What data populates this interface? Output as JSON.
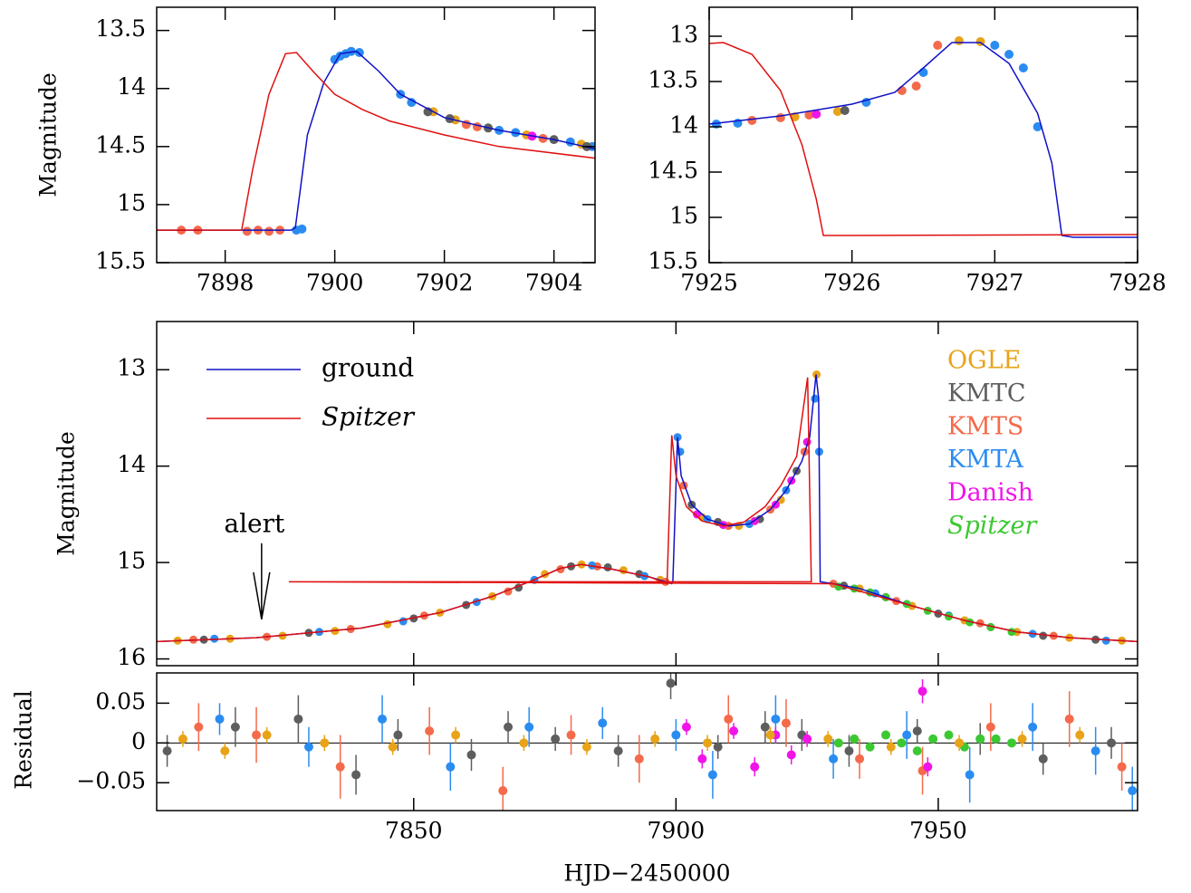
{
  "chart_data": [
    {
      "type": "lightcurve",
      "y_label": "Magnitude",
      "y_inverted": true,
      "xlim": [
        7896.75,
        7904.75
      ],
      "ylim": [
        13.3,
        15.5
      ],
      "xticks": [
        7898,
        7900,
        7902,
        7904
      ],
      "yticks": [
        13.5,
        14,
        14.5,
        15,
        15.5
      ],
      "show_xtick_labels": true,
      "series": [
        {
          "color": "#1010c8",
          "x": [
            7896.75,
            7899.2,
            7899.28,
            7899.5,
            7899.8,
            7900.1,
            7900.4,
            7900.8,
            7901.2,
            7902,
            7903,
            7904,
            7904.75
          ],
          "y": [
            15.22,
            15.22,
            15.2,
            14.4,
            13.95,
            13.7,
            13.68,
            13.85,
            14.05,
            14.25,
            14.36,
            14.44,
            14.52
          ]
        },
        {
          "color": "#e01010",
          "x": [
            7896.75,
            7898.3,
            7898.5,
            7898.8,
            7899.1,
            7899.3,
            7899.6,
            7900,
            7900.5,
            7901,
            7902,
            7903,
            7904.75
          ],
          "y": [
            15.22,
            15.22,
            14.7,
            14.05,
            13.7,
            13.69,
            13.85,
            14.05,
            14.18,
            14.28,
            14.4,
            14.5,
            14.6
          ]
        }
      ],
      "data": [
        {
          "color": "#f46a4a",
          "x": [
            7897.2,
            7897.5,
            7898.4,
            7898.6,
            7898.8,
            7899.0,
            7902.4,
            7902.6,
            7903.8
          ],
          "y": [
            15.22,
            15.22,
            15.23,
            15.22,
            15.23,
            15.22,
            14.31,
            14.33,
            14.43
          ]
        },
        {
          "color": "#2a8cf0",
          "x": [
            7899.3,
            7899.4,
            7900.0,
            7900.1,
            7900.2,
            7900.3,
            7900.45,
            7901.2,
            7901.4,
            7903.0,
            7903.3,
            7904.3,
            7904.7
          ],
          "y": [
            15.22,
            15.21,
            13.75,
            13.72,
            13.7,
            13.68,
            13.69,
            14.05,
            14.12,
            14.36,
            14.38,
            14.46,
            14.5
          ]
        },
        {
          "color": "#e8a318",
          "x": [
            7901.8,
            7902.2,
            7903.5,
            7904.5
          ],
          "y": [
            14.2,
            14.27,
            14.4,
            14.48
          ]
        },
        {
          "color": "#5e5e5e",
          "x": [
            7901.7,
            7902.1,
            7902.8,
            7904.0,
            7904.6
          ],
          "y": [
            14.2,
            14.26,
            14.34,
            14.44,
            14.5
          ]
        },
        {
          "color": "#f014e8",
          "x": [
            7903.6
          ],
          "y": [
            14.41
          ]
        }
      ]
    },
    {
      "type": "lightcurve",
      "y_inverted": true,
      "xlim": [
        7925,
        7928
      ],
      "ylim": [
        12.68,
        15.5
      ],
      "xticks": [
        7925,
        7926,
        7927,
        7928
      ],
      "yticks": [
        13,
        13.5,
        14,
        14.5,
        15,
        15.5
      ],
      "show_xtick_labels": true,
      "series": [
        {
          "color": "#1010c8",
          "x": [
            7925,
            7925.5,
            7926,
            7926.3,
            7926.5,
            7926.7,
            7926.9,
            7927.1,
            7927.3,
            7927.4,
            7927.47,
            7927.55,
            7928
          ],
          "y": [
            13.97,
            13.88,
            13.75,
            13.62,
            13.35,
            13.07,
            13.07,
            13.3,
            13.85,
            14.4,
            15.2,
            15.22,
            15.22
          ]
        },
        {
          "color": "#e01010",
          "x": [
            7925,
            7925.1,
            7925.3,
            7925.5,
            7925.65,
            7925.75,
            7925.8,
            7926,
            7928
          ],
          "y": [
            13.08,
            13.07,
            13.2,
            13.6,
            14.2,
            14.8,
            15.2,
            15.2,
            15.19
          ]
        }
      ],
      "data": [
        {
          "color": "#2a8cf0",
          "x": [
            7925.05,
            7925.2,
            7926.1,
            7926.5,
            7927.0,
            7927.1,
            7927.2,
            7927.3
          ],
          "y": [
            13.97,
            13.96,
            13.73,
            13.4,
            13.1,
            13.2,
            13.35,
            14.0
          ]
        },
        {
          "color": "#f46a4a",
          "x": [
            7925.3,
            7925.5,
            7925.7,
            7926.35,
            7926.45,
            7926.6
          ],
          "y": [
            13.93,
            13.9,
            13.87,
            13.6,
            13.55,
            13.1
          ]
        },
        {
          "color": "#e8a318",
          "x": [
            7925.6,
            7925.9,
            7926.75,
            7926.9
          ],
          "y": [
            13.89,
            13.83,
            13.05,
            13.06
          ]
        },
        {
          "color": "#5e5e5e",
          "x": [
            7925.95
          ],
          "y": [
            13.82
          ]
        },
        {
          "color": "#f014e8",
          "x": [
            7925.75
          ],
          "y": [
            13.86
          ]
        }
      ]
    },
    {
      "type": "lightcurve",
      "y_label": "Magnitude",
      "y_inverted": true,
      "xlim": [
        7801,
        7988
      ],
      "ylim": [
        12.5,
        16.07
      ],
      "xticks": [
        7850,
        7900,
        7950
      ],
      "yticks": [
        13,
        14,
        15,
        16
      ],
      "show_xtick_labels": false,
      "series": [
        {
          "name": "ground",
          "color": "#1010c8",
          "x": [
            7801,
            7820,
            7840,
            7855,
            7865,
            7872,
            7878,
            7882,
            7888,
            7895,
            7899.2,
            7899.4,
            7900.3,
            7901,
            7903,
            7906,
            7910,
            7914,
            7918,
            7921,
            7924,
            7925.5,
            7926.7,
            7927.2,
            7927.5,
            7930,
            7935,
            7945,
            7955,
            7965,
            7975,
            7988
          ],
          "y": [
            15.82,
            15.78,
            15.68,
            15.52,
            15.35,
            15.2,
            15.06,
            15.02,
            15.07,
            15.15,
            15.22,
            15.2,
            13.7,
            14.1,
            14.4,
            14.55,
            14.62,
            14.6,
            14.45,
            14.25,
            13.95,
            13.7,
            13.05,
            13.3,
            15.2,
            15.22,
            15.27,
            15.45,
            15.6,
            15.72,
            15.78,
            15.82
          ]
        },
        {
          "name": "Spitzer",
          "font_style": "italic",
          "color": "#e01010",
          "x": [
            7801,
            7820,
            7840,
            7855,
            7865,
            7872,
            7878,
            7882,
            7888,
            7895,
            7898.3,
            7899.2,
            7900,
            7902,
            7905,
            7909,
            7913,
            7917,
            7920,
            7923,
            7925.1,
            7925.8,
            7826.2,
            7930,
            7945,
            7955,
            7965,
            7975,
            7988
          ],
          "y": [
            15.82,
            15.78,
            15.68,
            15.52,
            15.35,
            15.2,
            15.06,
            15.02,
            15.07,
            15.15,
            15.22,
            13.68,
            14.1,
            14.42,
            14.57,
            14.62,
            14.58,
            14.42,
            14.2,
            13.9,
            13.08,
            15.2,
            15.2,
            15.22,
            15.45,
            15.6,
            15.72,
            15.78,
            15.82
          ]
        }
      ],
      "data": [
        {
          "name": "OGLE",
          "color": "#e8a318",
          "x": [
            7805,
            7815,
            7825,
            7835,
            7845,
            7855,
            7865,
            7875,
            7882,
            7890,
            7897,
            7905,
            7912,
            7920,
            7926.8,
            7935,
            7945,
            7955,
            7965,
            7975,
            7985
          ],
          "y": [
            15.81,
            15.79,
            15.76,
            15.71,
            15.64,
            15.52,
            15.35,
            15.12,
            15.02,
            15.08,
            15.18,
            14.53,
            14.62,
            14.35,
            13.05,
            15.27,
            15.45,
            15.6,
            15.72,
            15.78,
            15.81
          ]
        },
        {
          "name": "KMTC",
          "color": "#5e5e5e",
          "x": [
            7810,
            7830,
            7850,
            7860,
            7870,
            7880,
            7887,
            7893,
            7903,
            7908,
            7916,
            7923,
            7932,
            7940,
            7950,
            7960,
            7970,
            7980
          ],
          "y": [
            15.8,
            15.73,
            15.58,
            15.44,
            15.26,
            15.04,
            15.05,
            15.12,
            14.4,
            14.58,
            14.55,
            14.05,
            15.24,
            15.36,
            15.53,
            15.67,
            15.76,
            15.8
          ]
        },
        {
          "name": "KMTS",
          "color": "#f46a4a",
          "x": [
            7808,
            7822,
            7838,
            7852,
            7868,
            7878,
            7885,
            7898,
            7901.5,
            7910,
            7918,
            7924.5,
            7930,
            7942,
            7958,
            7972
          ],
          "y": [
            15.8,
            15.77,
            15.69,
            15.55,
            15.3,
            15.07,
            15.04,
            15.2,
            14.2,
            14.62,
            14.45,
            13.85,
            15.22,
            15.4,
            15.63,
            15.76
          ]
        },
        {
          "name": "KMTA",
          "color": "#2a8cf0",
          "x": [
            7812,
            7832,
            7848,
            7862,
            7873,
            7884,
            7894,
            7900.3,
            7900.8,
            7906,
            7914,
            7921,
            7926.5,
            7927.3,
            7938,
            7952,
            7968,
            7982
          ],
          "y": [
            15.79,
            15.72,
            15.61,
            15.41,
            15.18,
            15.03,
            15.14,
            13.7,
            13.85,
            14.55,
            14.6,
            14.25,
            13.3,
            13.85,
            15.32,
            15.55,
            15.74,
            15.81
          ]
        },
        {
          "name": "Danish",
          "color": "#f014e8",
          "x": [
            7904,
            7909,
            7915,
            7919,
            7922,
            7925
          ],
          "y": [
            14.5,
            14.61,
            14.57,
            14.4,
            14.15,
            13.75
          ]
        },
        {
          "name": "Spitzer",
          "font_style": "italic",
          "color": "#3cc832",
          "x": [
            7931,
            7934,
            7937,
            7940,
            7944,
            7948,
            7952,
            7956,
            7960,
            7964
          ],
          "y": [
            15.25,
            15.27,
            15.31,
            15.36,
            15.43,
            15.5,
            15.56,
            15.62,
            15.67,
            15.72
          ]
        }
      ],
      "annotation": {
        "text": "alert",
        "x": 7821,
        "y": 15.59
      }
    },
    {
      "type": "residual",
      "y_label": "Residual",
      "x_label": "HJD−2450000",
      "xlim": [
        7801,
        7988
      ],
      "ylim": [
        -0.085,
        0.088
      ],
      "xticks": [
        7850,
        7900,
        7950
      ],
      "yticks": [
        0.05,
        0,
        {
          "value": -0.05,
          "label": "−0.05"
        }
      ],
      "show_xtick_labels": true,
      "zero_line": true,
      "data": [
        {
          "color": "#5e5e5e",
          "x": [
            7803,
            7816,
            7828,
            7839,
            7847,
            7861,
            7868,
            7877,
            7889,
            7899,
            7908,
            7917,
            7924,
            7933,
            7946,
            7958,
            7970,
            7983
          ],
          "y": [
            -0.01,
            0.02,
            0.03,
            -0.04,
            0.01,
            -0.015,
            0.02,
            0.005,
            -0.01,
            0.075,
            -0.005,
            0.02,
            0.01,
            -0.01,
            0.015,
            0.005,
            -0.02,
            0.0
          ],
          "err": [
            0.02,
            0.025,
            0.03,
            0.025,
            0.02,
            0.02,
            0.02,
            0.015,
            0.02,
            0.02,
            0.015,
            0.02,
            0.02,
            0.02,
            0.015,
            0.02,
            0.02,
            0.02
          ]
        },
        {
          "color": "#f46a4a",
          "x": [
            7809,
            7820,
            7836,
            7853,
            7867,
            7880,
            7893,
            7910,
            7921,
            7935,
            7947,
            7960,
            7975,
            7985
          ],
          "y": [
            0.02,
            0.01,
            -0.03,
            0.015,
            -0.06,
            0.01,
            -0.02,
            0.03,
            0.025,
            -0.02,
            -0.035,
            0.02,
            0.03,
            -0.03
          ],
          "err": [
            0.03,
            0.035,
            0.04,
            0.03,
            0.03,
            0.025,
            0.03,
            0.03,
            0.03,
            0.025,
            0.03,
            0.03,
            0.035,
            0.03
          ]
        },
        {
          "color": "#2a8cf0",
          "x": [
            7813,
            7830,
            7844,
            7857,
            7872,
            7886,
            7900,
            7907,
            7919,
            7930,
            7944,
            7956,
            7968,
            7980,
            7987
          ],
          "y": [
            0.03,
            -0.005,
            0.03,
            -0.03,
            0.02,
            0.025,
            0.01,
            -0.04,
            0.03,
            -0.02,
            0.01,
            -0.04,
            0.02,
            -0.01,
            -0.06
          ],
          "err": [
            0.02,
            0.025,
            0.03,
            0.03,
            0.025,
            0.02,
            0.02,
            0.03,
            0.03,
            0.025,
            0.03,
            0.035,
            0.03,
            0.03,
            0.03
          ]
        },
        {
          "color": "#f014e8",
          "x": [
            7902,
            7905,
            7911,
            7915,
            7919,
            7922,
            7925,
            7947,
            7948
          ],
          "y": [
            0.02,
            -0.02,
            0.015,
            -0.03,
            0.01,
            -0.015,
            0.005,
            0.065,
            -0.03
          ],
          "err": [
            0.01,
            0.012,
            0.01,
            0.012,
            0.01,
            0.012,
            0.01,
            0.015,
            0.012
          ]
        },
        {
          "color": "#3cc832",
          "x": [
            7931,
            7934,
            7937,
            7940,
            7943,
            7946,
            7949,
            7952,
            7955,
            7958,
            7961,
            7964
          ],
          "y": [
            0,
            0.005,
            -0.005,
            0.01,
            0,
            -0.01,
            0.005,
            0.01,
            -0.005,
            0.005,
            0.005,
            0
          ],
          "err": [
            0.005,
            0.005,
            0.005,
            0.005,
            0.005,
            0.005,
            0.005,
            0.005,
            0.005,
            0.005,
            0.005,
            0.005
          ]
        },
        {
          "color": "#e8a318",
          "x": [
            7806,
            7814,
            7822,
            7833,
            7846,
            7858,
            7871,
            7883,
            7896,
            7906,
            7918,
            7929,
            7941,
            7954,
            7966,
            7977
          ],
          "y": [
            0.005,
            -0.01,
            0.01,
            0,
            -0.005,
            0.01,
            0,
            -0.005,
            0.005,
            0,
            0.01,
            0.005,
            -0.005,
            0,
            0.005,
            0.01
          ],
          "err": [
            0.01,
            0.01,
            0.01,
            0.01,
            0.01,
            0.01,
            0.01,
            0.01,
            0.01,
            0.01,
            0.01,
            0.01,
            0.01,
            0.01,
            0.01,
            0.01
          ]
        }
      ]
    }
  ]
}
